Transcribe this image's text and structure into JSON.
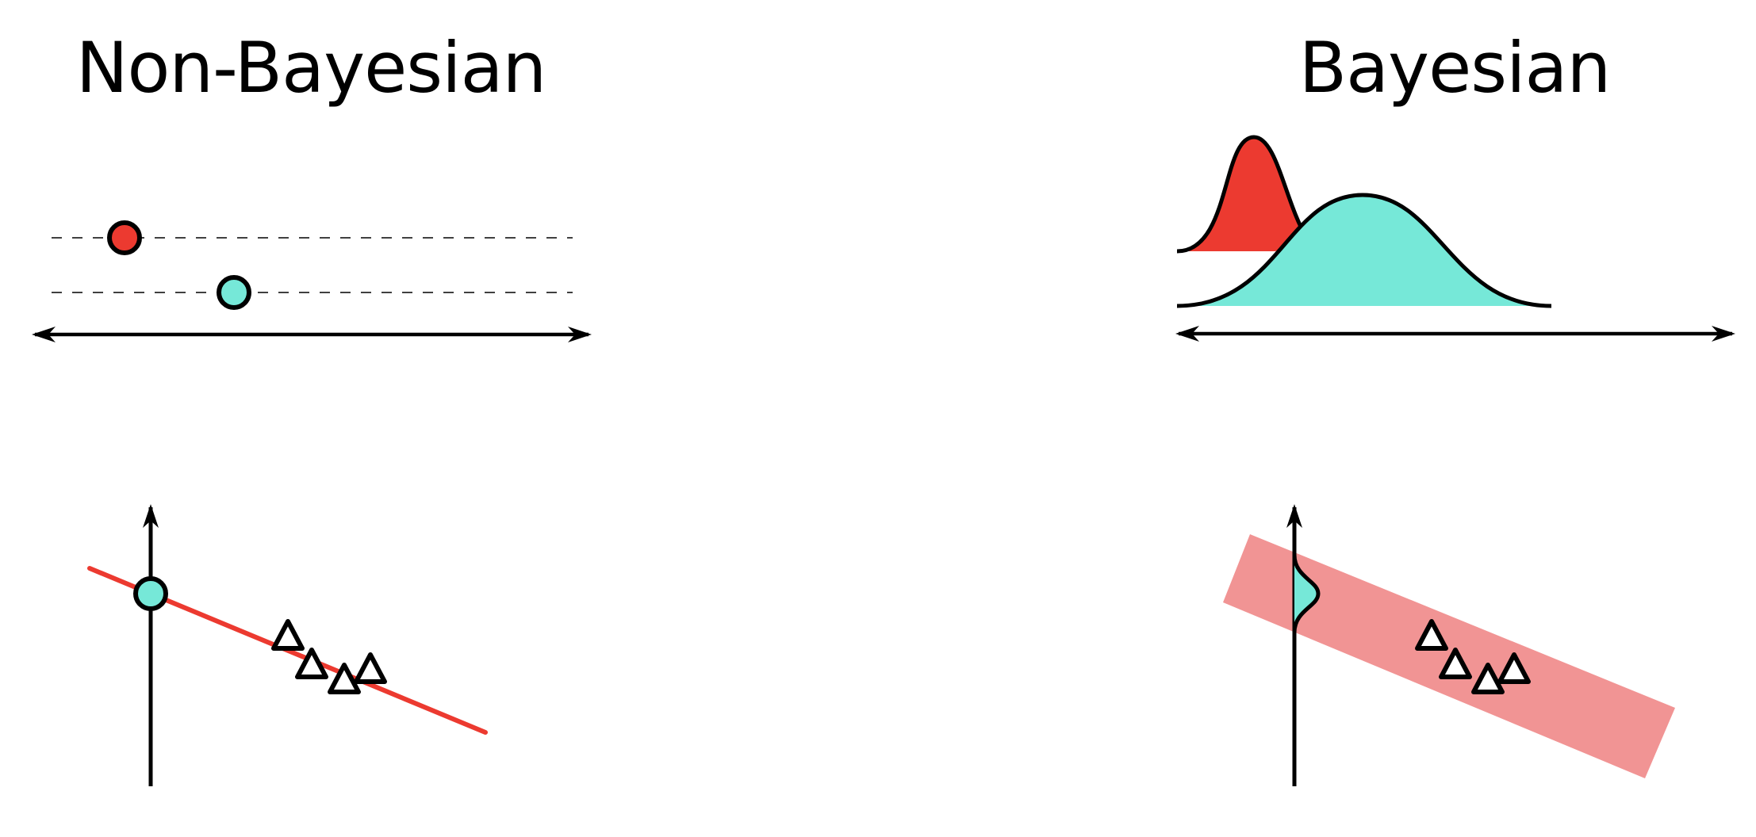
{
  "panels": {
    "left": {
      "title": "Non-Bayesian"
    },
    "right": {
      "title": "Bayesian"
    }
  },
  "colors": {
    "red": "#ec3a30",
    "cyan": "#76e8d8",
    "band": "#f19494",
    "stroke": "#000000"
  }
}
